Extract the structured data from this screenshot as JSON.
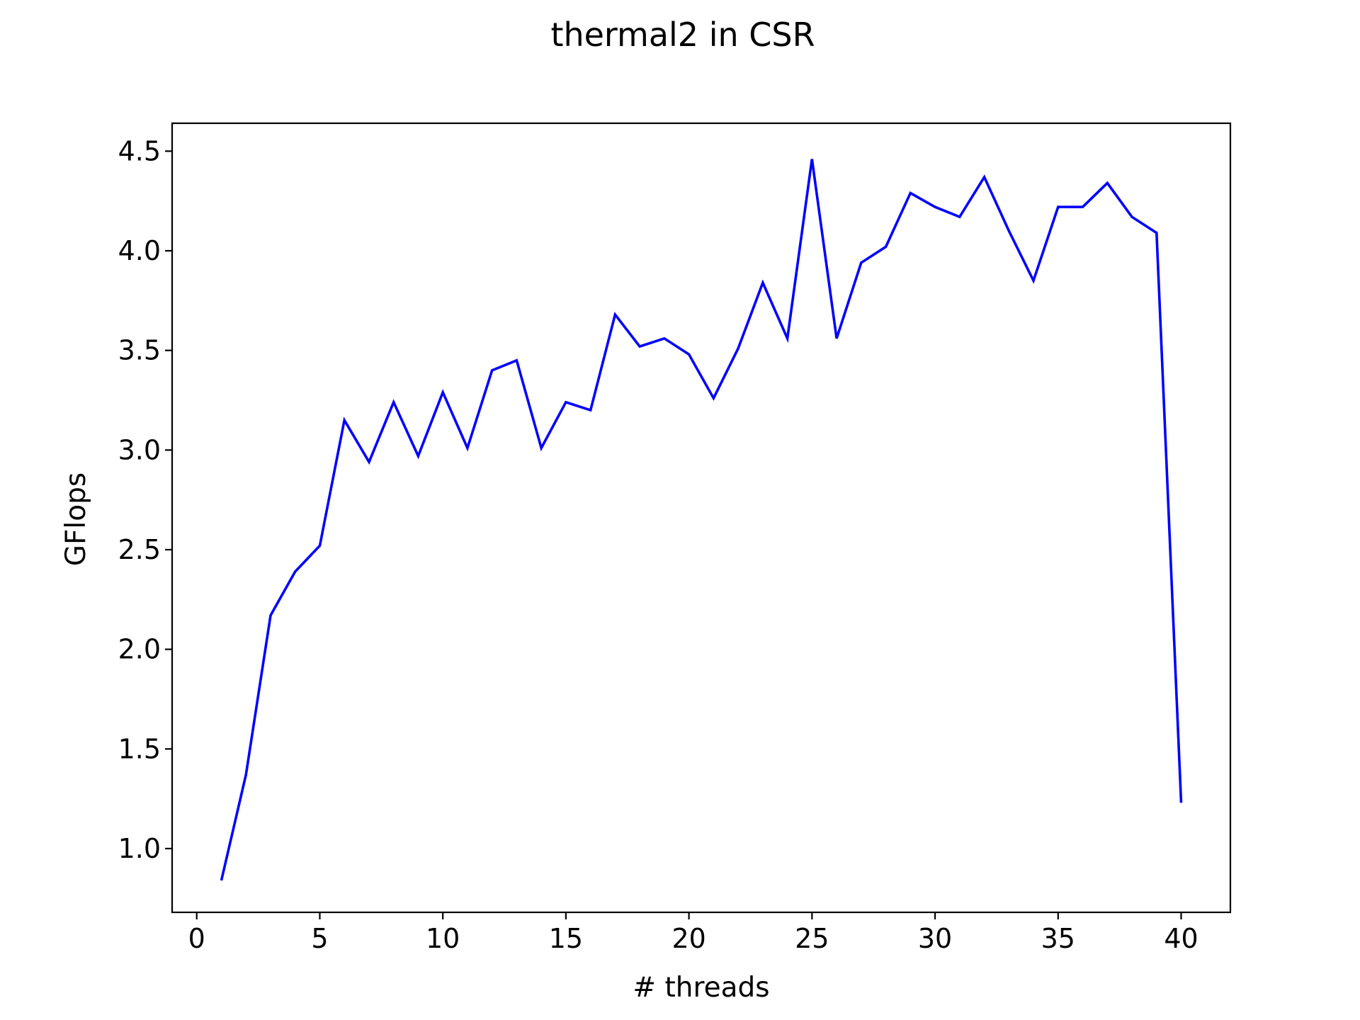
{
  "chart_data": {
    "type": "line",
    "title": "thermal2 in CSR",
    "xlabel": "# threads",
    "ylabel": "GFlops",
    "xlim": [
      -1,
      42
    ],
    "ylim": [
      0.68,
      4.64
    ],
    "xticks": [
      0,
      5,
      10,
      15,
      20,
      25,
      30,
      35,
      40
    ],
    "xtick_labels": [
      "0",
      "5",
      "10",
      "15",
      "20",
      "25",
      "30",
      "35",
      "40"
    ],
    "yticks": [
      1.0,
      1.5,
      2.0,
      2.5,
      3.0,
      3.5,
      4.0,
      4.5
    ],
    "ytick_labels": [
      "1.0",
      "1.5",
      "2.0",
      "2.5",
      "3.0",
      "3.5",
      "4.0",
      "4.5"
    ],
    "grid": false,
    "colors": {
      "line": "#0000ff",
      "axes": "#000000",
      "background": "#ffffff"
    },
    "series": [
      {
        "x": [
          1,
          2,
          3,
          4,
          5,
          6,
          7,
          8,
          9,
          10,
          11,
          12,
          13,
          14,
          15,
          16,
          17,
          18,
          19,
          20,
          21,
          22,
          23,
          24,
          25,
          26,
          27,
          28,
          29,
          30,
          31,
          32,
          33,
          34,
          35,
          36,
          37,
          38,
          39,
          40
        ],
        "values": [
          0.84,
          1.37,
          2.17,
          2.39,
          2.52,
          3.15,
          2.94,
          3.24,
          2.97,
          3.29,
          3.01,
          3.4,
          3.45,
          3.01,
          3.24,
          3.2,
          3.68,
          3.52,
          3.56,
          3.48,
          3.26,
          3.51,
          3.84,
          3.56,
          4.46,
          3.56,
          3.94,
          4.02,
          4.29,
          4.22,
          4.17,
          4.37,
          4.1,
          3.85,
          4.22,
          4.22,
          4.34,
          4.17,
          4.09,
          1.23
        ]
      }
    ]
  }
}
